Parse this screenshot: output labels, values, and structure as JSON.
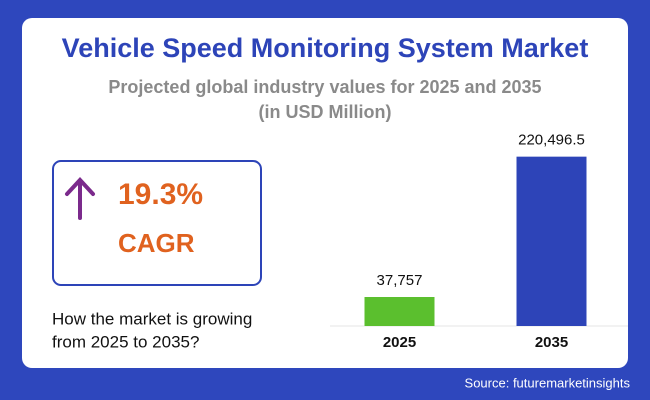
{
  "chart_data": {
    "type": "bar",
    "title": "Vehicle Speed Monitoring System Market",
    "subtitle": [
      "Projected global industry values for 2025 and 2035",
      "(in USD Million)"
    ],
    "categories": [
      "2025",
      "2035"
    ],
    "values": [
      37757,
      220496.5
    ],
    "value_labels": [
      "37,757",
      "220,496.5"
    ],
    "colors": [
      "#5bbf2e",
      "#2d44b8"
    ],
    "ylim": [
      0,
      250000
    ]
  },
  "cagr": {
    "value": "19.3%",
    "label": "CAGR"
  },
  "question": [
    "How the market is growing",
    "from 2025 to 2035?"
  ],
  "source": "Source: futuremarketinsights"
}
